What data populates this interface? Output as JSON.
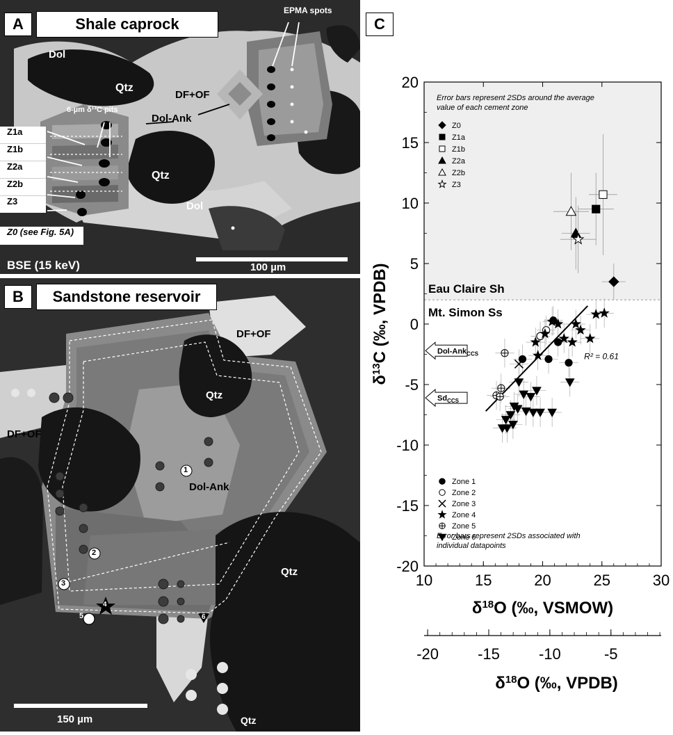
{
  "panel_a": {
    "letter": "A",
    "title": "Shale caprock",
    "labels": {
      "dol_top": "Dol",
      "qtz_1": "Qtz",
      "qtz_2": "Qtz",
      "dol_bottom": "Dol",
      "df_of": "DF+OF",
      "dol_ank": "Dol-Ank",
      "epma": "EPMA spots",
      "pits": "6-µm δ¹³C pits"
    },
    "zones": [
      "Z1a",
      "Z1b",
      "Z2a",
      "Z2b",
      "Z3"
    ],
    "z0_note": "Z0 (see Fig. 5A)",
    "bse": "BSE (15 keV)",
    "scale_label": "100 µm"
  },
  "panel_b": {
    "letter": "B",
    "title": "Sandstone reservoir",
    "labels": {
      "df_of_1": "DF+OF",
      "df_of_2": "DF+OF",
      "qtz_1": "Qtz",
      "qtz_2": "Qtz",
      "qtz_3": "Qtz",
      "dol_ank": "Dol-Ank"
    },
    "markers": [
      "1",
      "2",
      "3",
      "4",
      "5",
      "6"
    ],
    "scale_label": "150 µm"
  },
  "panel_c": {
    "letter": "C"
  },
  "colors": {
    "shaded_region": "#efefef",
    "sem_background": "#2b2b2b",
    "sem_cement": "#c9c9c9"
  },
  "chart_data": {
    "type": "scatter",
    "xlabel": "δ18O (‰, VSMOW)",
    "xlabel_secondary": "δ18O (‰, VPDB)",
    "ylabel": "δ13C (‰, VPDB)",
    "xlim": [
      10,
      30
    ],
    "ylim": [
      -20,
      20
    ],
    "xticks": [
      10,
      15,
      20,
      25,
      30
    ],
    "yticks": [
      -20,
      -15,
      -10,
      -5,
      0,
      5,
      10,
      15,
      20
    ],
    "xticks_secondary": [
      -20,
      -15,
      -10,
      -5
    ],
    "grid": false,
    "shaded_region_above_y": 2,
    "note_top": "Error bars represent 2SDs around the average value of each cement zone",
    "note_bottom": "Error bars represent 2SDs associated with individual datapoints",
    "region_upper_label": "Eau Claire Sh",
    "region_lower_label": "Mt. Simon Ss",
    "r2": "R² = 0.61",
    "arrows": [
      {
        "label": "Dol-Ank",
        "subscript": "CCS",
        "y": -2.2
      },
      {
        "label": "Sd",
        "subscript": "CCS",
        "y": -6.1
      }
    ],
    "legend_top": [
      {
        "name": "Z0",
        "marker": "diamond-filled"
      },
      {
        "name": "Z1a",
        "marker": "square-filled"
      },
      {
        "name": "Z1b",
        "marker": "square-open"
      },
      {
        "name": "Z2a",
        "marker": "triangle-filled"
      },
      {
        "name": "Z2b",
        "marker": "triangle-open"
      },
      {
        "name": "Z3",
        "marker": "star-open"
      }
    ],
    "legend_bottom": [
      {
        "name": "Zone 1",
        "marker": "circle-filled"
      },
      {
        "name": "Zone 2",
        "marker": "circle-open"
      },
      {
        "name": "Zone 3",
        "marker": "cross"
      },
      {
        "name": "Zone 4",
        "marker": "star-filled"
      },
      {
        "name": "Zone 5",
        "marker": "circle-plus"
      },
      {
        "name": "Zone 6",
        "marker": "triangle-down-filled"
      }
    ],
    "caprock_series": [
      {
        "name": "Z0",
        "marker": "diamond-filled",
        "x": 26.0,
        "y": 3.5,
        "xerr": 1.0,
        "yerr": 1.5
      },
      {
        "name": "Z1a",
        "marker": "square-filled",
        "x": 24.5,
        "y": 9.5,
        "xerr": 1.5,
        "yerr": 3.0
      },
      {
        "name": "Z1b",
        "marker": "square-open",
        "x": 25.1,
        "y": 10.7,
        "xerr": 1.2,
        "yerr": 5.0
      },
      {
        "name": "Z2a",
        "marker": "triangle-filled",
        "x": 22.8,
        "y": 7.5,
        "xerr": 1.2,
        "yerr": 3.0
      },
      {
        "name": "Z2b",
        "marker": "triangle-open",
        "x": 22.4,
        "y": 9.3,
        "xerr": 1.5,
        "yerr": 3.2
      },
      {
        "name": "Z3",
        "marker": "star-open",
        "x": 23.0,
        "y": 7.0,
        "xerr": 1.5,
        "yerr": 2.8
      }
    ],
    "reservoir_series": [
      {
        "name": "Zone 1",
        "marker": "circle-filled",
        "points": [
          [
            18.3,
            -2.9
          ],
          [
            20.5,
            -2.9
          ],
          [
            21.3,
            -1.5
          ],
          [
            22.2,
            -3.2
          ],
          [
            20.9,
            0.3
          ],
          [
            19.8,
            -1.0
          ]
        ]
      },
      {
        "name": "Zone 2",
        "marker": "circle-open",
        "points": [
          [
            19.8,
            -1.0
          ],
          [
            20.3,
            -0.5
          ]
        ]
      },
      {
        "name": "Zone 3",
        "marker": "cross",
        "points": [
          [
            18.0,
            -3.3
          ]
        ]
      },
      {
        "name": "Zone 4",
        "marker": "star-filled",
        "points": [
          [
            20.8,
            0.2
          ],
          [
            21.3,
            0.0
          ],
          [
            21.8,
            -1.2
          ],
          [
            22.5,
            -1.5
          ],
          [
            23.2,
            -0.5
          ],
          [
            24.0,
            -1.2
          ],
          [
            24.5,
            0.8
          ],
          [
            25.2,
            0.9
          ],
          [
            19.4,
            -1.5
          ],
          [
            20.2,
            -0.8
          ],
          [
            19.6,
            -2.6
          ],
          [
            22.8,
            0.0
          ]
        ]
      },
      {
        "name": "Zone 5",
        "marker": "circle-plus",
        "points": [
          [
            16.8,
            -2.4
          ],
          [
            16.5,
            -5.3
          ],
          [
            16.1,
            -5.9
          ],
          [
            16.4,
            -6.0
          ]
        ]
      },
      {
        "name": "Zone 6",
        "marker": "triangle-down-filled",
        "points": [
          [
            18.0,
            -4.8
          ],
          [
            18.4,
            -5.8
          ],
          [
            19.0,
            -6.0
          ],
          [
            19.5,
            -5.5
          ],
          [
            17.6,
            -6.8
          ],
          [
            18.6,
            -7.2
          ],
          [
            19.2,
            -7.3
          ],
          [
            19.8,
            -7.3
          ],
          [
            20.8,
            -7.3
          ],
          [
            17.3,
            -7.5
          ],
          [
            16.9,
            -7.9
          ],
          [
            17.5,
            -8.3
          ],
          [
            17.0,
            -8.6
          ],
          [
            16.6,
            -8.6
          ],
          [
            22.3,
            -4.8
          ],
          [
            17.9,
            -7.0
          ]
        ]
      }
    ],
    "regression": {
      "x": [
        15.2,
        23.8
      ],
      "y": [
        -7.2,
        1.5
      ]
    }
  }
}
